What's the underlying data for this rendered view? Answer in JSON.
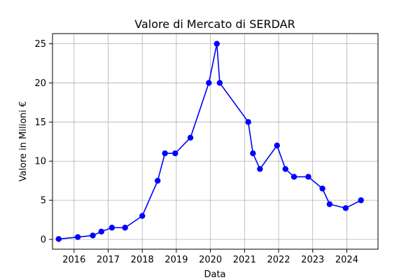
{
  "chart_data": {
    "type": "line",
    "title": "Valore di Mercato di SERDAR",
    "xlabel": "Data",
    "ylabel": "Valore in Milioni €",
    "x_ticks": [
      "2016",
      "2017",
      "2018",
      "2019",
      "2020",
      "2021",
      "2022",
      "2023",
      "2024"
    ],
    "y_ticks": [
      "0",
      "5",
      "10",
      "15",
      "20",
      "25"
    ],
    "xlim": [
      "2015-05-15",
      "2024-12-01"
    ],
    "ylim": [
      -1.25,
      26.3
    ],
    "grid": true,
    "series": [
      {
        "color": "#0000ff",
        "marker": "circle",
        "x": [
          "2015-07-20",
          "2016-02-10",
          "2016-07-20",
          "2016-10-20",
          "2017-02-10",
          "2017-07-01",
          "2018-01-01",
          "2018-06-15",
          "2018-09-01",
          "2018-12-20",
          "2019-06-01",
          "2019-12-15",
          "2020-03-10",
          "2020-04-10",
          "2021-02-10",
          "2021-04-01",
          "2021-06-15",
          "2021-12-15",
          "2022-03-15",
          "2022-06-15",
          "2022-11-15",
          "2023-04-15",
          "2023-07-01",
          "2023-12-20",
          "2024-06-01"
        ],
        "values": [
          0.05,
          0.3,
          0.5,
          1,
          1.5,
          1.5,
          3,
          7.5,
          11,
          11,
          13,
          20,
          25,
          20,
          15,
          11,
          9,
          12,
          9,
          8,
          8,
          6.5,
          4.5,
          4,
          5
        ]
      }
    ]
  }
}
